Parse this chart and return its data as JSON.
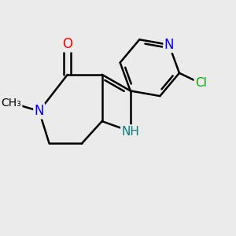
{
  "bg_color": "#ebebeb",
  "bond_color": "#000000",
  "bond_width": 1.8,
  "atom_colors": {
    "N": "#0000ff",
    "O": "#ff0000",
    "Cl": "#00aa00",
    "NH": "#008080"
  },
  "font_size": 11,
  "fig_size": [
    3.0,
    3.0
  ],
  "dpi": 100
}
